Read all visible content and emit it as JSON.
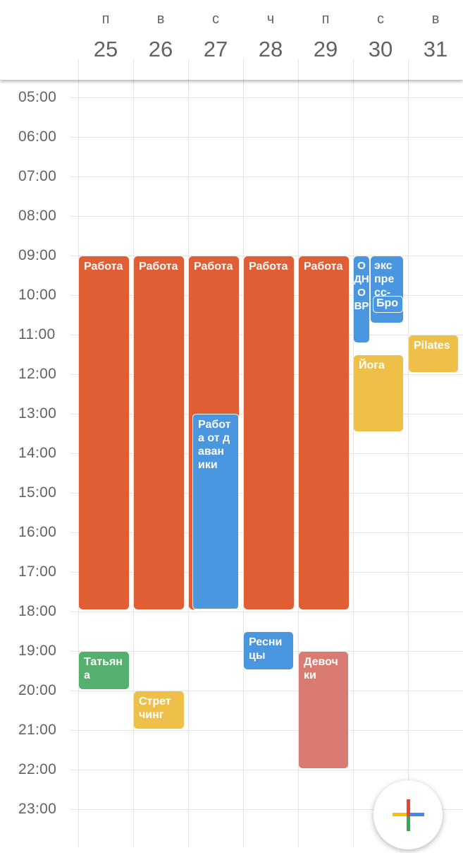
{
  "days": [
    {
      "dow": "п",
      "date": "25"
    },
    {
      "dow": "в",
      "date": "26"
    },
    {
      "dow": "с",
      "date": "27"
    },
    {
      "dow": "ч",
      "date": "28"
    },
    {
      "dow": "п",
      "date": "29"
    },
    {
      "dow": "с",
      "date": "30"
    },
    {
      "dow": "в",
      "date": "31"
    }
  ],
  "hours": [
    "05:00",
    "06:00",
    "07:00",
    "08:00",
    "09:00",
    "10:00",
    "11:00",
    "12:00",
    "13:00",
    "14:00",
    "15:00",
    "16:00",
    "17:00",
    "18:00",
    "19:00",
    "20:00",
    "21:00",
    "22:00",
    "23:00"
  ],
  "events": {
    "work_25": "Работа",
    "work_26": "Работа",
    "work_27": "Работа",
    "work_28": "Работа",
    "work_29": "Работа",
    "odnovr_30": "ОДНОВР",
    "express_30": "экс пре сс-",
    "bro_30": "Бро",
    "yoga_30": "Йога",
    "pilates_31": "Pilates",
    "rabota_ot_davaniki_27": "Работ а от даван ики",
    "tatyana_25": "Татьян а",
    "stretching_26": "Стрет чинг",
    "resnitsy_28": "Ресни цы",
    "devochki_29": "Девоч ки"
  },
  "colors": {
    "tomato": "#E05E33",
    "peacock": "#4A97E0",
    "banana": "#EEC04A",
    "sage": "#55B06E",
    "flamingo": "#D97B70"
  },
  "fab": {
    "icon": "plus-icon"
  }
}
